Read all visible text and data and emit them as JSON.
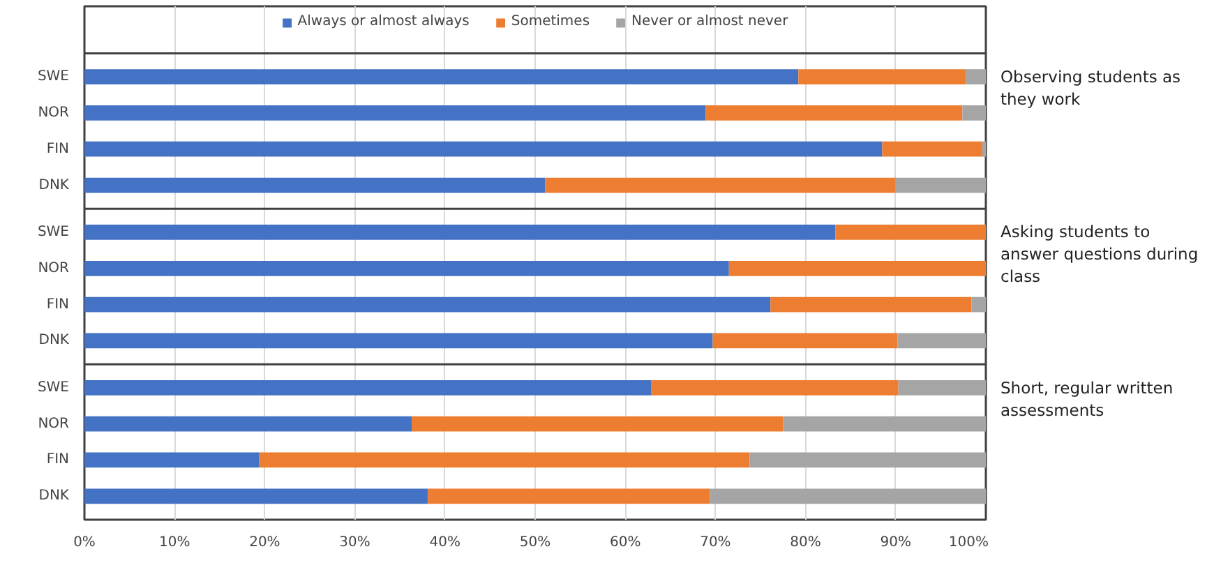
{
  "chart_data": [
    {
      "type": "bar",
      "orientation": "horizontal",
      "stacked": true,
      "categories": [
        "SWE",
        "NOR",
        "FIN",
        "DNK"
      ],
      "annotations": [
        "Observing students as they work"
      ],
      "legend": "top",
      "grid": "x",
      "tick_labels": "y",
      "xlim": [
        0,
        100
      ],
      "xticks": [
        0,
        10,
        20,
        30,
        40,
        50,
        60,
        70,
        80,
        90,
        100
      ],
      "series": [
        {
          "name": "Always or almost always",
          "color": "#4472c4",
          "values": [
            79.2,
            68.9,
            88.5,
            51.1
          ]
        },
        {
          "name": "Sometimes",
          "color": "#ed7d31",
          "values": [
            18.6,
            28.5,
            11.1,
            38.9
          ]
        },
        {
          "name": "Never or almost never",
          "color": "#a5a5a5",
          "values": [
            2.2,
            2.6,
            0.4,
            10.0
          ]
        }
      ]
    },
    {
      "type": "bar",
      "orientation": "horizontal",
      "stacked": true,
      "categories": [
        "SWE",
        "NOR",
        "FIN",
        "DNK"
      ],
      "annotations": [
        "Asking students to answer questions during class"
      ],
      "grid": "x",
      "tick_labels": "y",
      "xlim": [
        0,
        100
      ],
      "xticks": [
        0,
        10,
        20,
        30,
        40,
        50,
        60,
        70,
        80,
        90,
        100
      ],
      "series": [
        {
          "color": "#4472c4",
          "values": [
            83.3,
            71.5,
            76.1,
            69.7
          ]
        },
        {
          "color": "#ed7d31",
          "values": [
            16.7,
            28.5,
            22.3,
            20.5
          ]
        },
        {
          "color": "#a5a5a5",
          "values": [
            0,
            0,
            1.6,
            9.8
          ]
        }
      ]
    },
    {
      "type": "bar",
      "orientation": "horizontal",
      "stacked": true,
      "categories": [
        "SWE",
        "NOR",
        "FIN",
        "DNK"
      ],
      "annotations": [
        "Short, regular written assessments"
      ],
      "grid": "x",
      "xlim": [
        0,
        100
      ],
      "xticks": [
        {
          "value": 0,
          "label": "0%"
        },
        {
          "value": 10,
          "label": "10%"
        },
        {
          "value": 20,
          "label": "20%"
        },
        {
          "value": 30,
          "label": "30%"
        },
        {
          "value": 40,
          "label": "40%"
        },
        {
          "value": 50,
          "label": "50%"
        },
        {
          "value": 60,
          "label": "60%"
        },
        {
          "value": 70,
          "label": "70%"
        },
        {
          "value": 80,
          "label": "80%"
        },
        {
          "value": 90,
          "label": "90%"
        },
        {
          "value": 100,
          "label": "100%"
        }
      ],
      "series": [
        {
          "color": "#4472c4",
          "values": [
            62.9,
            36.3,
            19.4,
            38.1
          ]
        },
        {
          "color": "#ed7d31",
          "values": [
            27.4,
            41.2,
            54.4,
            31.3
          ]
        },
        {
          "color": "#a5a5a5",
          "values": [
            9.7,
            22.5,
            26.2,
            30.6
          ]
        }
      ]
    }
  ]
}
